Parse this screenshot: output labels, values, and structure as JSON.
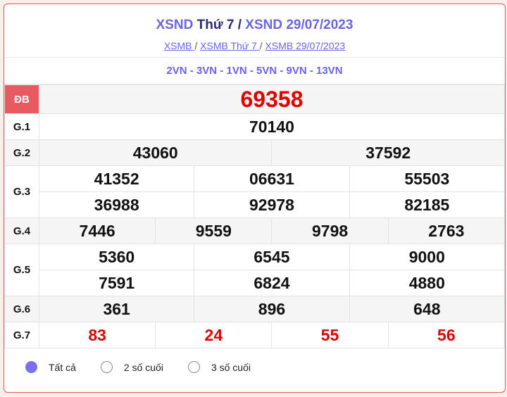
{
  "header": {
    "title_a": "XSND",
    "title_b": "Thứ 7",
    "sep": "/",
    "title_c": "XSND 29/07/2023",
    "breadcrumb": [
      {
        "label": "XSMB "
      },
      {
        "label": "XSMB Thứ 7 "
      },
      {
        "label": "XSMB 29/07/2023"
      }
    ],
    "breadcrumb_sep": "/"
  },
  "codes": "2VN - 3VN - 1VN - 5VN - 9VN - 13VN",
  "prizes": {
    "db": {
      "label": "ĐB",
      "values": [
        "69358"
      ]
    },
    "g1": {
      "label": "G.1",
      "values": [
        "70140"
      ]
    },
    "g2": {
      "label": "G.2",
      "values": [
        "43060",
        "37592"
      ]
    },
    "g3": {
      "label": "G.3",
      "values": [
        "41352",
        "06631",
        "55503",
        "36988",
        "92978",
        "82185"
      ]
    },
    "g4": {
      "label": "G.4",
      "values": [
        "7446",
        "9559",
        "9798",
        "2763"
      ]
    },
    "g5": {
      "label": "G.5",
      "values": [
        "5360",
        "6545",
        "9000",
        "7591",
        "6824",
        "4880"
      ]
    },
    "g6": {
      "label": "G.6",
      "values": [
        "361",
        "896",
        "648"
      ]
    },
    "g7": {
      "label": "G.7",
      "values": [
        "83",
        "24",
        "55",
        "56"
      ]
    }
  },
  "filter": {
    "options": [
      {
        "label": "Tất cả",
        "selected": true
      },
      {
        "label": "2 số cuối",
        "selected": false
      },
      {
        "label": "3 số cuối",
        "selected": false
      }
    ]
  },
  "colors": {
    "accent": "#6a63e6",
    "special": "#e00000",
    "db_badge": "#e85a5f",
    "border": "#e85555"
  }
}
